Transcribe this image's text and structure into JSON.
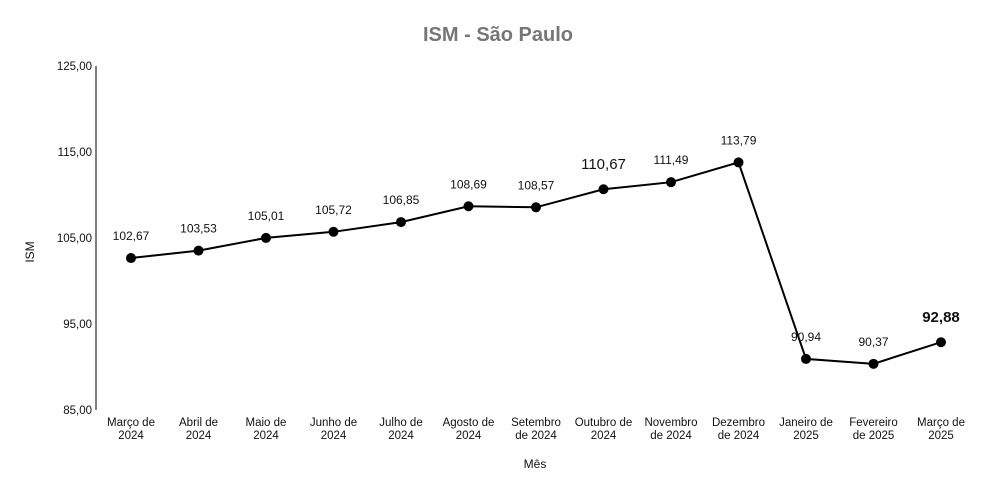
{
  "chart_data": {
    "type": "line",
    "title": "ISM - São Paulo",
    "xlabel": "Mês",
    "ylabel": "ISM",
    "ylim": [
      85,
      125
    ],
    "yticks": [
      "125,00",
      "115,00",
      "105,00",
      "95,00",
      "85,00"
    ],
    "ytick_values": [
      125,
      115,
      105,
      95,
      85
    ],
    "categories": [
      [
        "Março de",
        "2024"
      ],
      [
        "Abril de",
        "2024"
      ],
      [
        "Maio de",
        "2024"
      ],
      [
        "Junho de",
        "2024"
      ],
      [
        "Julho de",
        "2024"
      ],
      [
        "Agosto de",
        "2024"
      ],
      [
        "Setembro",
        "de 2024"
      ],
      [
        "Outubro de",
        "2024"
      ],
      [
        "Novembro",
        "de 2024"
      ],
      [
        "Dezembro",
        "de 2024"
      ],
      [
        "Janeiro de",
        "2025"
      ],
      [
        "Fevereiro",
        "de 2025"
      ],
      [
        "Março de",
        "2025"
      ]
    ],
    "values": [
      102.67,
      103.53,
      105.01,
      105.72,
      106.85,
      108.69,
      108.57,
      110.67,
      111.49,
      113.79,
      90.94,
      90.37,
      92.88
    ],
    "value_labels": [
      "102,67",
      "103,53",
      "105,01",
      "105,72",
      "106,85",
      "108,69",
      "108,57",
      "110,67",
      "111,49",
      "113,79",
      "90,94",
      "90,37",
      "92,88"
    ],
    "grid": false,
    "legend": "none",
    "line_color": "#000000",
    "marker_color": "#000000"
  }
}
